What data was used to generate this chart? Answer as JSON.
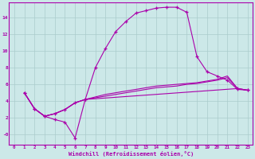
{
  "xlabel": "Windchill (Refroidissement éolien,°C)",
  "bg_color": "#cce8e8",
  "grid_color": "#aacccc",
  "line_color": "#aa00aa",
  "xlim": [
    -0.5,
    23.5
  ],
  "ylim": [
    -1.2,
    15.8
  ],
  "xticks": [
    0,
    1,
    2,
    3,
    4,
    5,
    6,
    7,
    8,
    9,
    10,
    11,
    12,
    13,
    14,
    15,
    16,
    17,
    18,
    19,
    20,
    21,
    22,
    23
  ],
  "yticks": [
    0,
    2,
    4,
    6,
    8,
    10,
    12,
    14
  ],
  "ytick_labels": [
    "-0",
    "2",
    "4",
    "6",
    "8",
    "10",
    "12",
    "14"
  ],
  "line1_x": [
    1,
    2,
    3,
    4,
    5,
    6,
    7,
    8,
    9,
    10,
    11,
    12,
    13,
    14,
    15,
    16,
    17,
    18,
    19,
    20,
    21,
    22,
    23
  ],
  "line1_y": [
    5.0,
    3.1,
    2.2,
    2.5,
    3.0,
    3.8,
    4.2,
    8.0,
    10.3,
    12.3,
    13.5,
    14.5,
    14.8,
    15.1,
    15.2,
    15.2,
    14.6,
    9.3,
    7.5,
    7.0,
    6.5,
    5.4,
    5.3
  ],
  "line2_x": [
    1,
    2,
    3,
    4,
    5,
    6,
    7,
    8,
    9,
    10,
    11,
    12,
    13,
    14,
    15,
    16,
    17,
    18,
    19,
    20,
    21,
    22,
    23
  ],
  "line2_y": [
    5.0,
    3.1,
    2.2,
    2.5,
    3.0,
    3.8,
    4.2,
    4.4,
    4.6,
    4.8,
    5.0,
    5.2,
    5.4,
    5.6,
    5.7,
    5.8,
    6.0,
    6.1,
    6.3,
    6.5,
    6.8,
    5.5,
    5.3
  ],
  "line3_x": [
    1,
    2,
    3,
    4,
    5,
    6,
    7,
    22,
    23
  ],
  "line3_y": [
    5.0,
    3.1,
    2.2,
    1.8,
    1.5,
    -0.4,
    4.2,
    5.5,
    5.3
  ],
  "line4_x": [
    1,
    2,
    3,
    4,
    5,
    6,
    7,
    8,
    9,
    10,
    11,
    12,
    13,
    14,
    15,
    16,
    17,
    18,
    19,
    20,
    21,
    22,
    23
  ],
  "line4_y": [
    5.0,
    3.1,
    2.2,
    2.5,
    3.0,
    3.8,
    4.2,
    4.5,
    4.8,
    5.0,
    5.2,
    5.4,
    5.6,
    5.8,
    5.9,
    6.0,
    6.1,
    6.2,
    6.4,
    6.6,
    7.0,
    5.5,
    5.3
  ]
}
